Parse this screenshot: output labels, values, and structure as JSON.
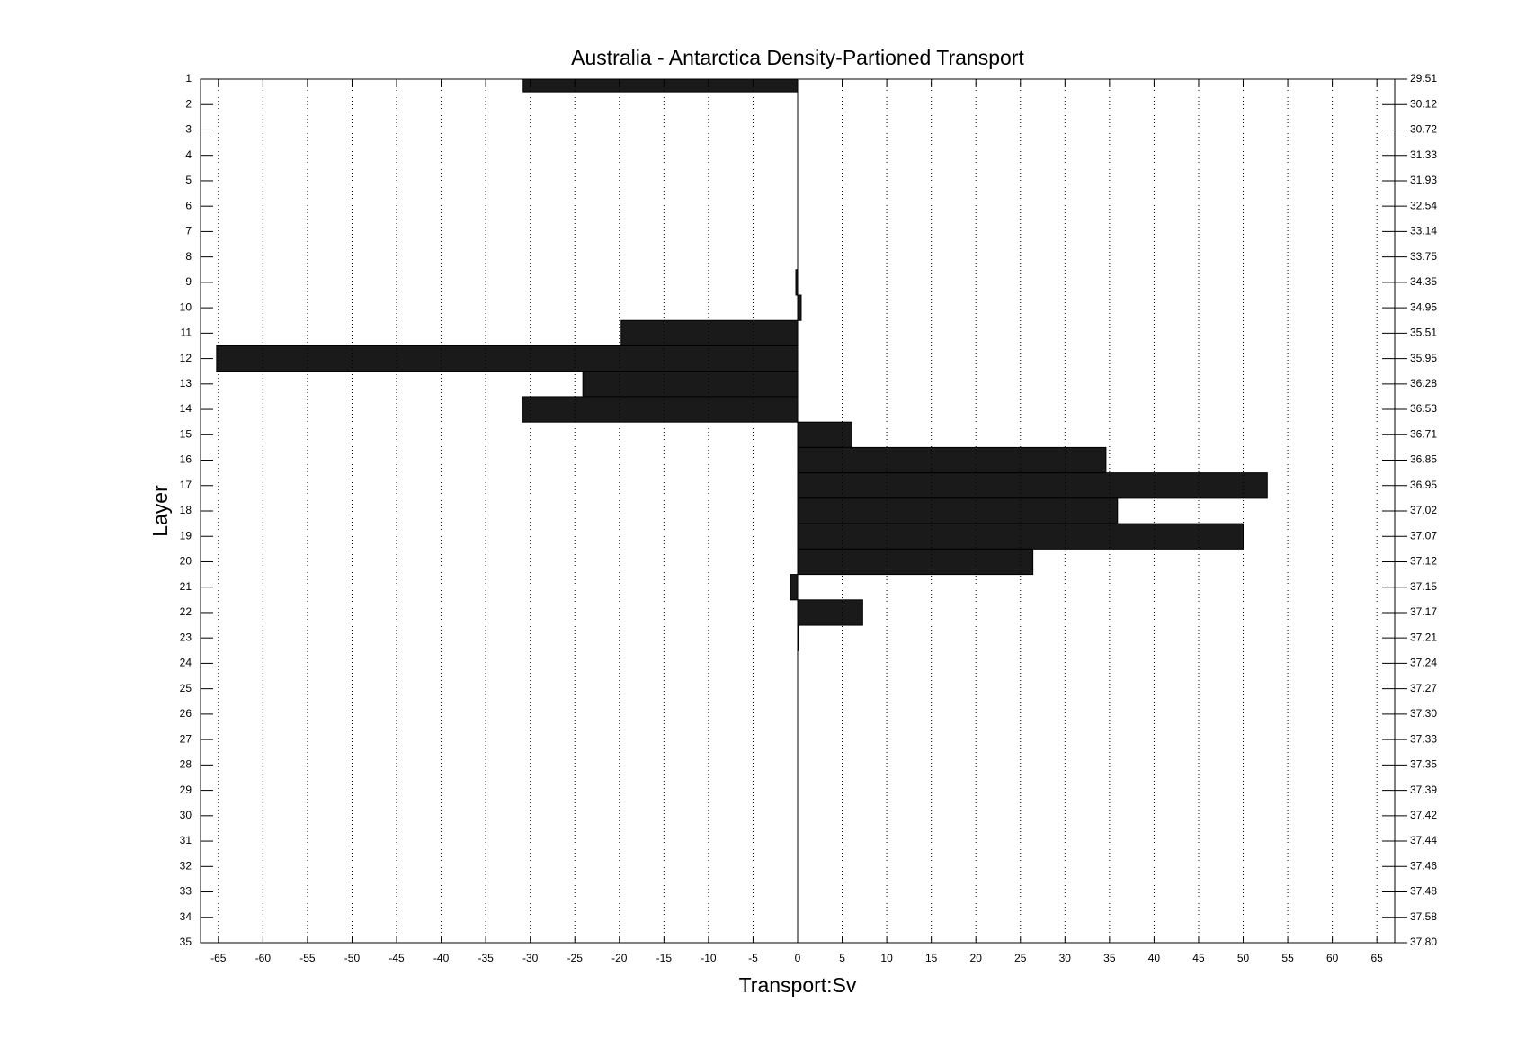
{
  "chart_data": {
    "type": "barh",
    "title": "Australia - Antarctica Density-Partioned Transport",
    "xlabel": "Transport:Sv",
    "ylabel": "Layer",
    "categories": [
      1,
      2,
      3,
      4,
      5,
      6,
      7,
      8,
      9,
      10,
      11,
      12,
      13,
      14,
      15,
      16,
      17,
      18,
      19,
      20,
      21,
      22,
      23,
      24,
      25,
      26,
      27,
      28,
      29,
      30,
      31,
      32,
      33,
      34,
      35
    ],
    "values": [
      -30.8,
      0,
      0,
      0,
      0,
      0,
      0,
      0,
      -0.2,
      0.4,
      -19.8,
      -65.2,
      -24.1,
      -30.9,
      6.1,
      34.6,
      52.7,
      35.9,
      50.0,
      26.4,
      -0.8,
      7.3,
      0.1,
      0,
      0,
      0,
      0,
      0,
      0,
      0,
      0,
      0,
      0,
      0,
      0
    ],
    "color": "#1a1a1a",
    "xlim": [
      -67,
      67
    ],
    "xticks": [
      -65,
      -60,
      -55,
      -50,
      -45,
      -40,
      -35,
      -30,
      -25,
      -20,
      -15,
      -10,
      -5,
      0,
      5,
      10,
      15,
      20,
      25,
      30,
      35,
      40,
      45,
      50,
      55,
      60,
      65
    ],
    "ylim": [
      1,
      35
    ],
    "yticks": [
      1,
      2,
      3,
      4,
      5,
      6,
      7,
      8,
      9,
      10,
      11,
      12,
      13,
      14,
      15,
      16,
      17,
      18,
      19,
      20,
      21,
      22,
      23,
      24,
      25,
      26,
      27,
      28,
      29,
      30,
      31,
      32,
      33,
      34,
      35
    ],
    "y_reversed": true,
    "y2lim": [
      1,
      35
    ],
    "y2ticks": [
      {
        "value": 1,
        "label": "29.51"
      },
      {
        "value": 2,
        "label": "30.12"
      },
      {
        "value": 3,
        "label": "30.72"
      },
      {
        "value": 4,
        "label": "31.33"
      },
      {
        "value": 5,
        "label": "31.93"
      },
      {
        "value": 6,
        "label": "32.54"
      },
      {
        "value": 7,
        "label": "33.14"
      },
      {
        "value": 8,
        "label": "33.75"
      },
      {
        "value": 9,
        "label": "34.35"
      },
      {
        "value": 10,
        "label": "34.95"
      },
      {
        "value": 11,
        "label": "35.51"
      },
      {
        "value": 12,
        "label": "35.95"
      },
      {
        "value": 13,
        "label": "36.28"
      },
      {
        "value": 14,
        "label": "36.53"
      },
      {
        "value": 15,
        "label": "36.71"
      },
      {
        "value": 16,
        "label": "36.85"
      },
      {
        "value": 17,
        "label": "36.95"
      },
      {
        "value": 18,
        "label": "37.02"
      },
      {
        "value": 19,
        "label": "37.07"
      },
      {
        "value": 20,
        "label": "37.12"
      },
      {
        "value": 21,
        "label": "37.15"
      },
      {
        "value": 22,
        "label": "37.17"
      },
      {
        "value": 23,
        "label": "37.21"
      },
      {
        "value": 24,
        "label": "37.24"
      },
      {
        "value": 25,
        "label": "37.27"
      },
      {
        "value": 26,
        "label": "37.30"
      },
      {
        "value": 27,
        "label": "37.33"
      },
      {
        "value": 28,
        "label": "37.35"
      },
      {
        "value": 29,
        "label": "37.39"
      },
      {
        "value": 30,
        "label": "37.42"
      },
      {
        "value": 31,
        "label": "37.44"
      },
      {
        "value": 32,
        "label": "37.46"
      },
      {
        "value": 33,
        "label": "37.48"
      },
      {
        "value": 34,
        "label": "37.58"
      },
      {
        "value": 35,
        "label": "37.80"
      }
    ],
    "grid": true
  }
}
